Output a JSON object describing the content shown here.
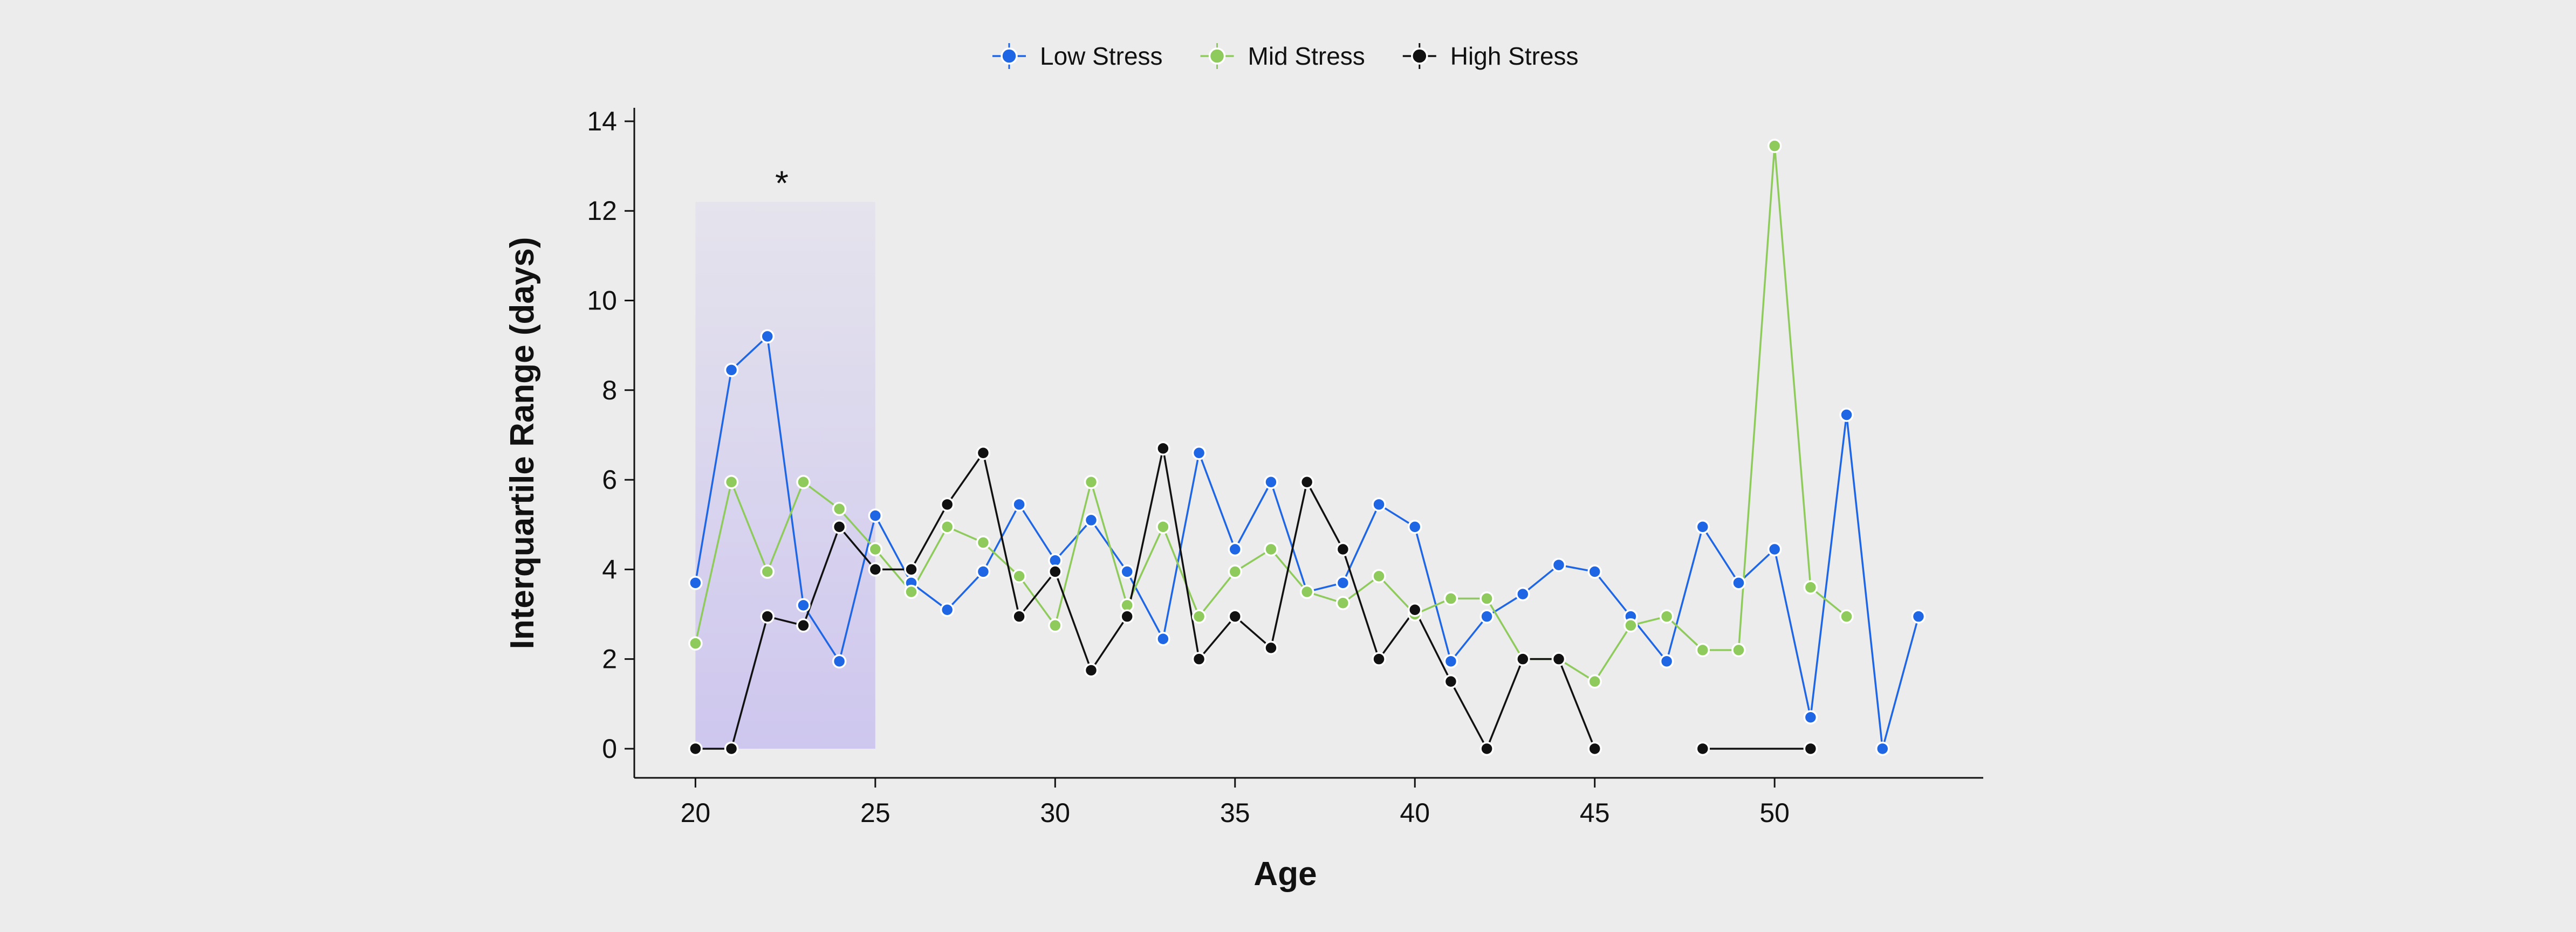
{
  "chart_data": {
    "type": "line",
    "title": "",
    "xlabel": "Age",
    "ylabel": "Interquartile Range (days)",
    "xlim": [
      18.3,
      55.8
    ],
    "ylim": [
      -0.65,
      14.3
    ],
    "xticks": [
      20,
      25,
      30,
      35,
      40,
      45,
      50
    ],
    "yticks": [
      0,
      2,
      4,
      6,
      8,
      10,
      12,
      14
    ],
    "grid": false,
    "legend_position": "top-center",
    "highlight_region": {
      "x": [
        20,
        25
      ],
      "y": [
        0,
        12.2
      ],
      "color": "#c9c0ef"
    },
    "annotations": [
      {
        "text": "*",
        "x": 22.4,
        "y": 12.6
      }
    ],
    "series": [
      {
        "name": "Low Stress",
        "color": "#1f66e5",
        "x": [
          20,
          21,
          22,
          23,
          24,
          25,
          26,
          27,
          28,
          29,
          30,
          31,
          32,
          33,
          34,
          35,
          36,
          37,
          38,
          39,
          40,
          41,
          42,
          43,
          44,
          45,
          46,
          47,
          48,
          49,
          50,
          51,
          52,
          53,
          54
        ],
        "y": [
          3.7,
          8.45,
          9.2,
          3.2,
          1.95,
          5.2,
          3.7,
          3.1,
          3.95,
          5.45,
          4.2,
          5.1,
          3.95,
          2.45,
          6.6,
          4.45,
          5.95,
          3.5,
          3.7,
          5.45,
          4.95,
          1.95,
          2.95,
          3.45,
          4.1,
          3.95,
          2.95,
          1.95,
          4.95,
          3.7,
          4.45,
          0.7,
          7.45,
          0,
          2.95
        ]
      },
      {
        "name": "Mid Stress",
        "color": "#8fcb5c",
        "x": [
          20,
          21,
          22,
          23,
          24,
          25,
          26,
          27,
          28,
          29,
          30,
          31,
          32,
          33,
          34,
          35,
          36,
          37,
          38,
          39,
          40,
          41,
          42,
          43,
          44,
          45,
          46,
          47,
          48,
          49,
          50,
          51,
          52
        ],
        "y": [
          2.35,
          5.95,
          3.95,
          5.95,
          5.35,
          4.45,
          3.5,
          4.95,
          4.6,
          3.85,
          2.75,
          5.95,
          3.2,
          4.95,
          2.95,
          3.95,
          4.45,
          3.5,
          3.25,
          3.85,
          3.0,
          3.35,
          3.35,
          2.0,
          2.0,
          1.5,
          2.75,
          2.95,
          2.2,
          2.2,
          13.45,
          3.6,
          2.95
        ]
      },
      {
        "name": "High Stress",
        "color": "#111111",
        "x": [
          20,
          21,
          22,
          23,
          24,
          25,
          26,
          27,
          28,
          29,
          30,
          31,
          32,
          33,
          34,
          35,
          36,
          37,
          38,
          39,
          40,
          41,
          42,
          43,
          44,
          45,
          48,
          51
        ],
        "y": [
          0,
          0,
          2.95,
          2.75,
          4.95,
          4.0,
          4.0,
          5.45,
          6.6,
          2.95,
          3.95,
          1.75,
          2.95,
          6.7,
          2.0,
          2.95,
          2.25,
          5.95,
          4.45,
          2.0,
          3.1,
          1.5,
          0,
          2.0,
          2.0,
          0,
          0,
          0
        ],
        "breaks_after_x": [
          45
        ]
      }
    ]
  }
}
